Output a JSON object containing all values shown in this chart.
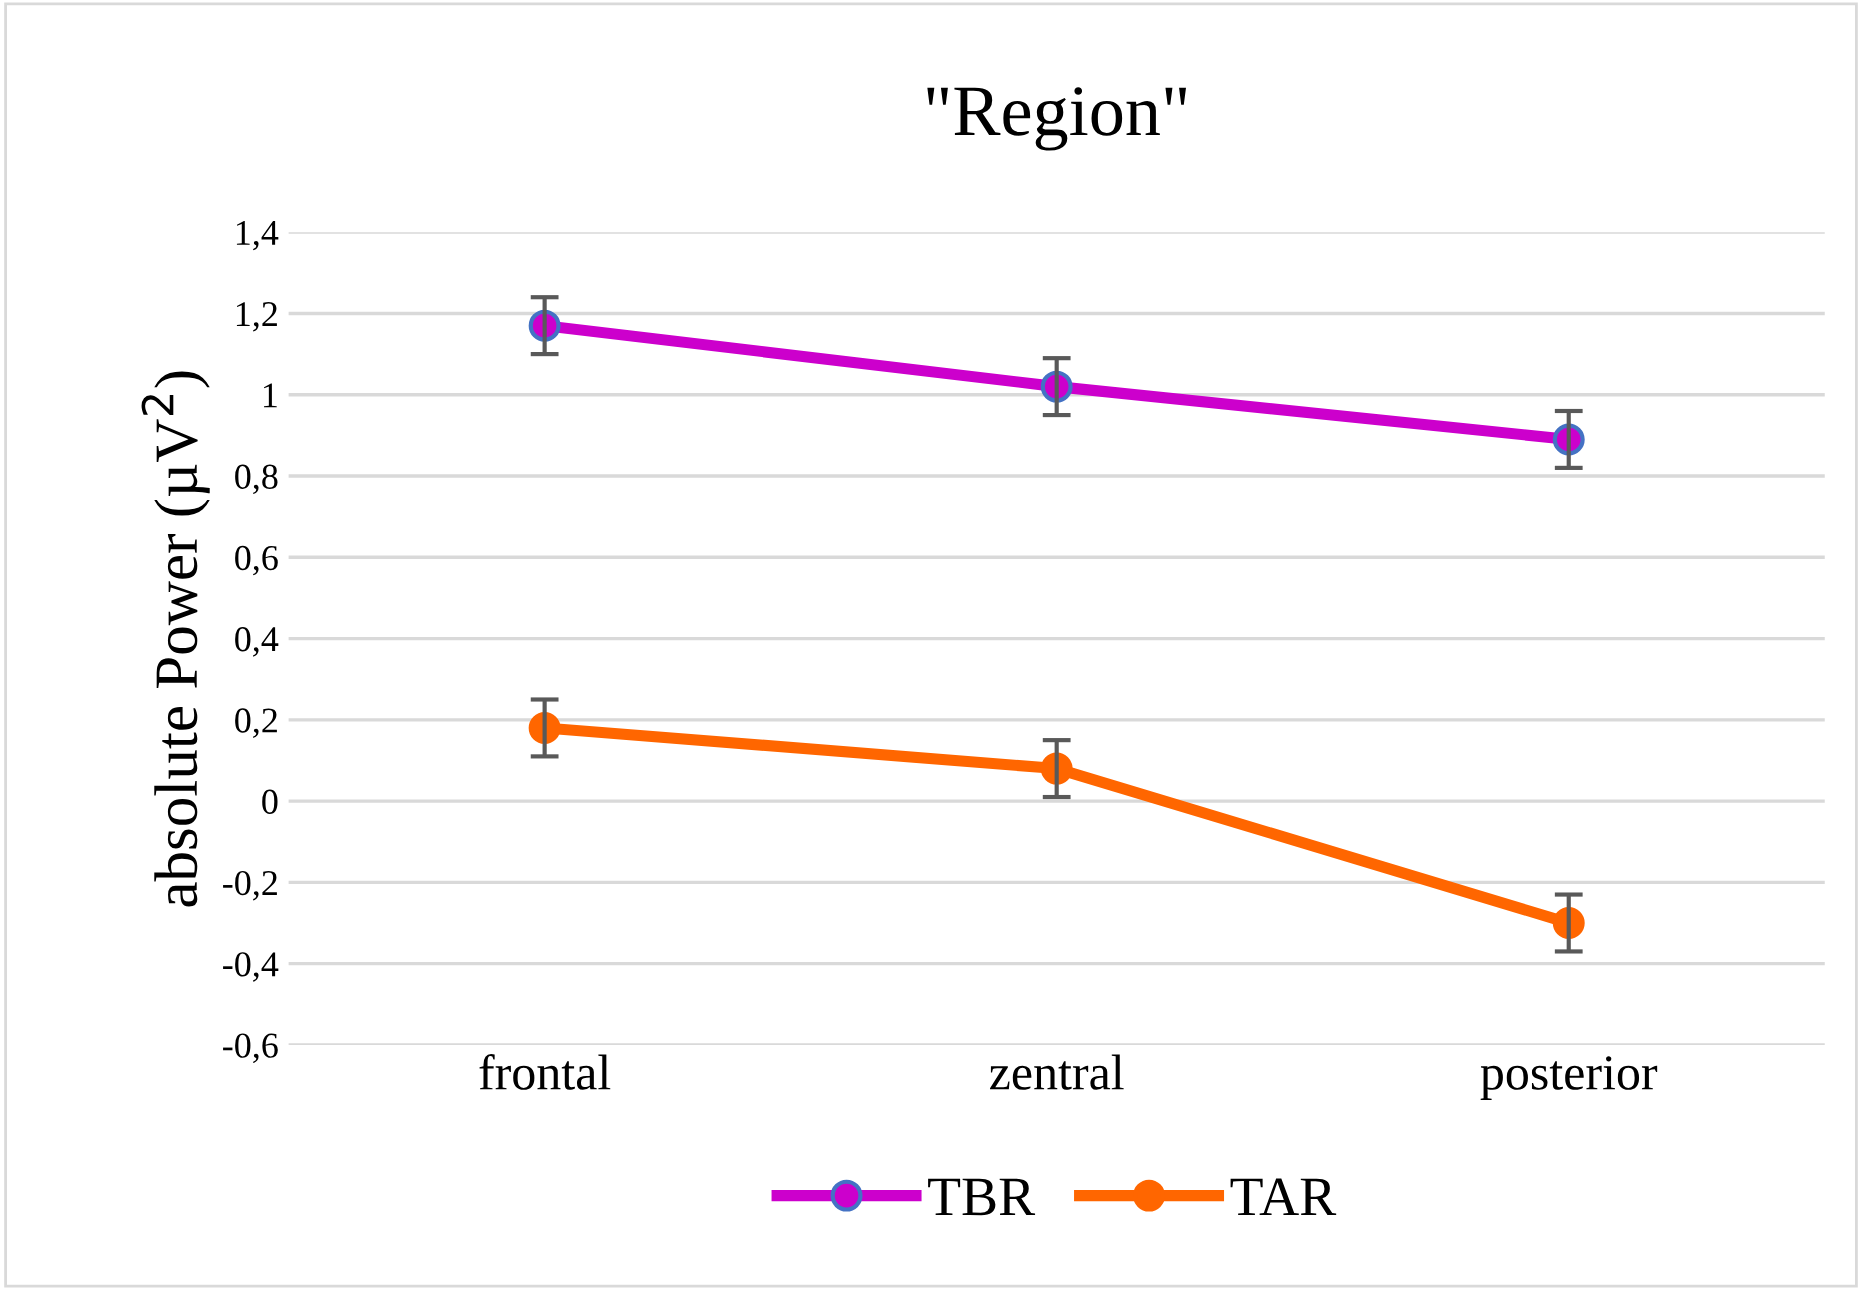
{
  "chart_data": {
    "type": "line",
    "title": "\"Region\"",
    "ylabel": "absolute Power (µV$^{2}$)",
    "categories": [
      "frontal",
      "zentral",
      "posterior"
    ],
    "series": [
      {
        "name": "TBR",
        "color": "#cc00cc",
        "values": [
          1.17,
          1.02,
          0.89
        ],
        "errors": [
          0.07,
          0.07,
          0.07
        ]
      },
      {
        "name": "TAR",
        "color": "#ff6600",
        "values": [
          0.18,
          0.08,
          -0.3
        ],
        "errors": [
          0.07,
          0.07,
          0.07
        ]
      }
    ],
    "ylim": [
      -0.6,
      1.4
    ],
    "yticks": [
      {
        "value": -0.6,
        "label": "-0,6"
      },
      {
        "value": -0.4,
        "label": "-0,4"
      },
      {
        "value": -0.2,
        "label": "-0,2"
      },
      0,
      {
        "value": 0.2,
        "label": "0,2"
      },
      {
        "value": 0.4,
        "label": "0,4"
      },
      {
        "value": 0.6,
        "label": "0,6"
      },
      {
        "value": 0.8,
        "label": "0,8"
      },
      1,
      {
        "value": 1.2,
        "label": "1,2"
      },
      {
        "value": 1.4,
        "label": "1,4"
      }
    ],
    "grid": "y",
    "legend": "bottom",
    "marker": "circle",
    "line_style": "solid"
  }
}
